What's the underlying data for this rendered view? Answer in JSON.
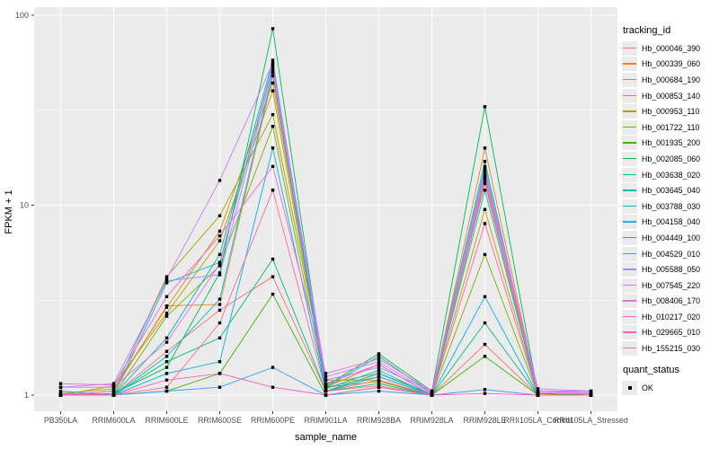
{
  "chart_data": {
    "type": "line",
    "title": "",
    "xlabel": "sample_name",
    "ylabel": "FPKM + 1",
    "y_scale": "log10",
    "y_ticks": [
      1,
      10,
      100
    ],
    "y_tick_labels": [
      "1",
      "10",
      "100"
    ],
    "y_minor_ticks": [
      3.1623,
      31.623
    ],
    "ylim": [
      0.85,
      110
    ],
    "grid": true,
    "legend_position": "right",
    "point_shape": "filled-square",
    "point_color": "#000000",
    "categories": [
      "PB350LA",
      "RRIM600LA",
      "RRIM600LE",
      "RRIM600SE",
      "RRIM600PE",
      "RRIM901LA",
      "RRIM928BA",
      "RRIM928LA",
      "RRIM928LE",
      "RRII105LA_Control",
      "RRII105LA_Stressed"
    ],
    "series": [
      {
        "name": "Hb_000046_390",
        "color": "#F8766D",
        "values": [
          1.0,
          1.0,
          1.7,
          2.8,
          4.2,
          1.05,
          1.12,
          1.0,
          1.85,
          1.0,
          1.0
        ]
      },
      {
        "name": "Hb_000339_060",
        "color": "#EA8331",
        "values": [
          1.0,
          1.05,
          2.95,
          3.0,
          48.0,
          1.1,
          1.45,
          1.0,
          20.0,
          1.02,
          1.0
        ]
      },
      {
        "name": "Hb_000684_190",
        "color": "#D89000",
        "values": [
          1.02,
          1.08,
          2.9,
          7.3,
          44.0,
          1.15,
          1.3,
          1.02,
          14.0,
          1.0,
          1.0
        ]
      },
      {
        "name": "Hb_000853_140",
        "color": "#C09B00",
        "values": [
          1.0,
          1.12,
          2.7,
          6.5,
          40.0,
          1.1,
          1.25,
          1.0,
          9.5,
          1.0,
          1.02
        ]
      },
      {
        "name": "Hb_000953_110",
        "color": "#A3A500",
        "values": [
          1.0,
          1.05,
          4.2,
          8.8,
          30.0,
          1.2,
          1.2,
          1.0,
          13.0,
          1.0,
          1.0
        ]
      },
      {
        "name": "Hb_001722_110",
        "color": "#7CAE00",
        "values": [
          1.0,
          1.0,
          2.6,
          4.8,
          26.0,
          1.1,
          1.18,
          1.0,
          5.5,
          1.0,
          1.0
        ]
      },
      {
        "name": "Hb_001935_200",
        "color": "#39B600",
        "values": [
          1.0,
          1.0,
          1.05,
          1.3,
          3.4,
          1.0,
          1.1,
          1.0,
          1.6,
          1.0,
          1.0
        ]
      },
      {
        "name": "Hb_002085_060",
        "color": "#00BB4E",
        "values": [
          1.0,
          1.02,
          1.4,
          4.4,
          85.0,
          1.12,
          1.65,
          1.05,
          33.0,
          1.02,
          1.0
        ]
      },
      {
        "name": "Hb_003638_020",
        "color": "#00BF7D",
        "values": [
          1.0,
          1.0,
          1.5,
          2.0,
          5.2,
          1.05,
          1.15,
          1.0,
          2.4,
          1.0,
          1.0
        ]
      },
      {
        "name": "Hb_003645_040",
        "color": "#00C1A3",
        "values": [
          1.0,
          1.0,
          2.0,
          5.5,
          58.0,
          1.1,
          1.6,
          1.02,
          17.0,
          1.0,
          1.0
        ]
      },
      {
        "name": "Hb_003788_030",
        "color": "#00BFC4",
        "values": [
          1.0,
          1.0,
          3.9,
          5.0,
          55.0,
          1.08,
          1.35,
          1.0,
          16.0,
          1.0,
          1.0
        ]
      },
      {
        "name": "Hb_004158_040",
        "color": "#00BAE0",
        "values": [
          1.0,
          1.0,
          1.6,
          3.2,
          50.0,
          1.05,
          1.3,
          1.0,
          12.0,
          1.0,
          1.0
        ]
      },
      {
        "name": "Hb_004449_100",
        "color": "#00B0F6",
        "values": [
          1.0,
          1.0,
          1.3,
          1.5,
          20.0,
          1.05,
          1.25,
          1.0,
          3.3,
          1.0,
          1.0
        ]
      },
      {
        "name": "Hb_004529_010",
        "color": "#35A2FF",
        "values": [
          1.05,
          1.0,
          1.05,
          1.1,
          1.4,
          1.0,
          1.05,
          1.0,
          1.07,
          1.0,
          1.0
        ]
      },
      {
        "name": "Hb_005588_050",
        "color": "#9590FF",
        "values": [
          1.1,
          1.15,
          4.0,
          4.3,
          52.0,
          1.2,
          1.4,
          1.05,
          15.0,
          1.05,
          1.05
        ]
      },
      {
        "name": "Hb_007545_220",
        "color": "#C77CFF",
        "values": [
          1.0,
          1.05,
          4.1,
          13.5,
          56.0,
          1.25,
          1.5,
          1.02,
          15.5,
          1.08,
          1.05
        ]
      },
      {
        "name": "Hb_008406_170",
        "color": "#E76BF3",
        "values": [
          1.1,
          1.1,
          1.9,
          4.9,
          54.0,
          1.15,
          1.45,
          1.0,
          14.5,
          1.03,
          1.02
        ]
      },
      {
        "name": "Hb_010217_020",
        "color": "#FA62DB",
        "values": [
          1.15,
          1.13,
          3.3,
          6.9,
          16.0,
          1.3,
          1.55,
          1.05,
          13.5,
          1.05,
          1.03
        ]
      },
      {
        "name": "Hb_029665_010",
        "color": "#FF62BC",
        "values": [
          1.0,
          1.0,
          1.2,
          1.3,
          1.1,
          1.0,
          1.1,
          1.0,
          1.02,
          1.0,
          1.0
        ]
      },
      {
        "name": "Hb_155215_030",
        "color": "#FF6A98",
        "values": [
          1.02,
          1.0,
          1.1,
          2.4,
          12.0,
          1.05,
          1.2,
          1.0,
          8.0,
          1.0,
          1.0
        ]
      }
    ]
  },
  "legend": {
    "tracking_title": "tracking_id",
    "quant_title": "quant_status",
    "quant_items": [
      "OK"
    ]
  },
  "colors": {
    "panel_bg": "#ebebeb",
    "grid": "#ffffff",
    "axis_text": "#4d4d4d",
    "tick_mark": "#333333",
    "legend_key_bg": "#ebebeb"
  }
}
